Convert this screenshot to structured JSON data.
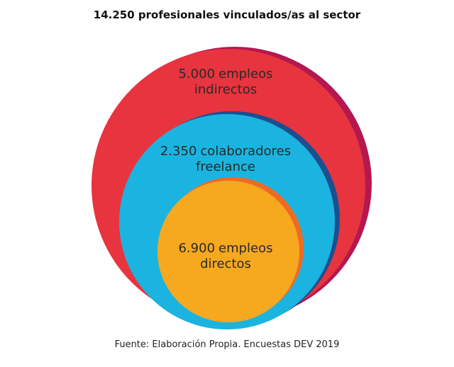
{
  "chart_data": {
    "type": "nested-circles",
    "title": "14.250 profesionales vinculados/as al sector",
    "categories": [
      "empleos indirectos",
      "colaboradores freelance",
      "empleos directos"
    ],
    "values": [
      5000,
      2350,
      6900
    ],
    "value_labels": [
      "5.000",
      "2.350",
      "6.900"
    ],
    "colors": [
      "#e8343f",
      "#1bb4e0",
      "#f6a81f"
    ],
    "source": "Fuente: Elaboración Propia. Encuestas DEV 2019"
  }
}
